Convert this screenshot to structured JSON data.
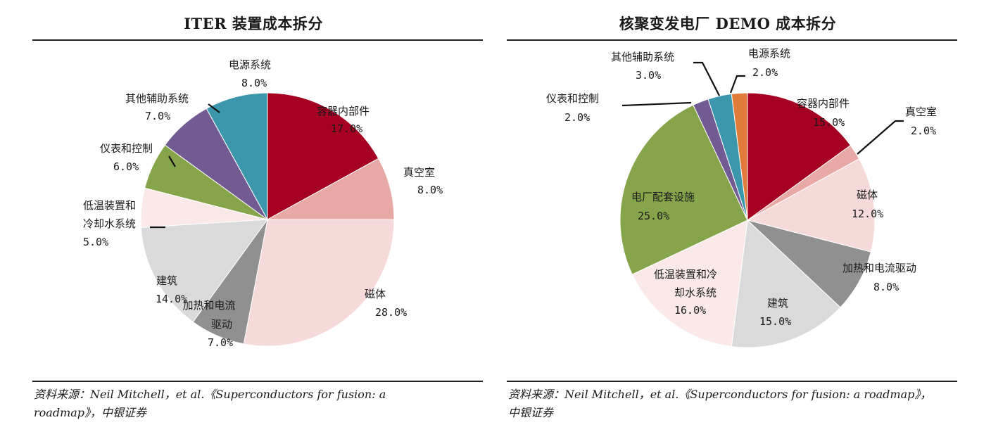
{
  "chart_data": [
    {
      "type": "pie",
      "title": "ITER 装置成本拆分",
      "slices": [
        {
          "name": "容器内部件",
          "value": 17.0,
          "value_label": "17.0%",
          "color": "#a50021"
        },
        {
          "name": "真空室",
          "value": 8.0,
          "value_label": "8.0%",
          "color": "#e8a9a6"
        },
        {
          "name": "磁体",
          "value": 28.0,
          "value_label": "28.0%",
          "color": "#f6d9d9"
        },
        {
          "name": "加热和电流驱动",
          "value": 7.0,
          "value_label": "7.0%",
          "color": "#909090"
        },
        {
          "name": "建筑",
          "value": 14.0,
          "value_label": "14.0%",
          "color": "#dadada"
        },
        {
          "name": "低温装置和冷却水系统",
          "value": 5.0,
          "value_label": "5.0%",
          "color": "#fbe9e9"
        },
        {
          "name": "仪表和控制",
          "value": 6.0,
          "value_label": "6.0%",
          "color": "#86a54a"
        },
        {
          "name": "其他辅助系统",
          "value": 7.0,
          "value_label": "7.0%",
          "color": "#725a92"
        },
        {
          "name": "电源系统",
          "value": 8.0,
          "value_label": "8.0%",
          "color": "#3d97ac"
        }
      ],
      "source": [
        "资料来源：Neil Mitchell，et al.《Superconductors for fusion: a",
        "roadmap》，中银证券"
      ]
    },
    {
      "type": "pie",
      "title": "核聚变发电厂 DEMO 成本拆分",
      "slices": [
        {
          "name": "容器内部件",
          "value": 15.0,
          "value_label": "15.0%",
          "color": "#a50021"
        },
        {
          "name": "真空室",
          "value": 2.0,
          "value_label": "2.0%",
          "color": "#e8a9a6"
        },
        {
          "name": "磁体",
          "value": 12.0,
          "value_label": "12.0%",
          "color": "#f6d9d9"
        },
        {
          "name": "加热和电流驱动",
          "value": 8.0,
          "value_label": "8.0%",
          "color": "#909090"
        },
        {
          "name": "建筑",
          "value": 15.0,
          "value_label": "15.0%",
          "color": "#dadada"
        },
        {
          "name": "低温装置和冷却水系统",
          "value": 16.0,
          "value_label": "16.0%",
          "color": "#fbe9e9"
        },
        {
          "name": "电厂配套设施",
          "value": 25.0,
          "value_label": "25.0%",
          "color": "#86a54a"
        },
        {
          "name": "仪表和控制",
          "value": 2.0,
          "value_label": "2.0%",
          "color": "#725a92"
        },
        {
          "name": "其他辅助系统",
          "value": 3.0,
          "value_label": "3.0%",
          "color": "#3d97ac"
        },
        {
          "name": "电源系统",
          "value": 2.0,
          "value_label": "2.0%",
          "color": "#e07b39"
        }
      ],
      "source": [
        "资料来源：Neil Mitchell，et al.《Superconductors for fusion: a roadmap》，",
        "中银证券"
      ]
    }
  ]
}
